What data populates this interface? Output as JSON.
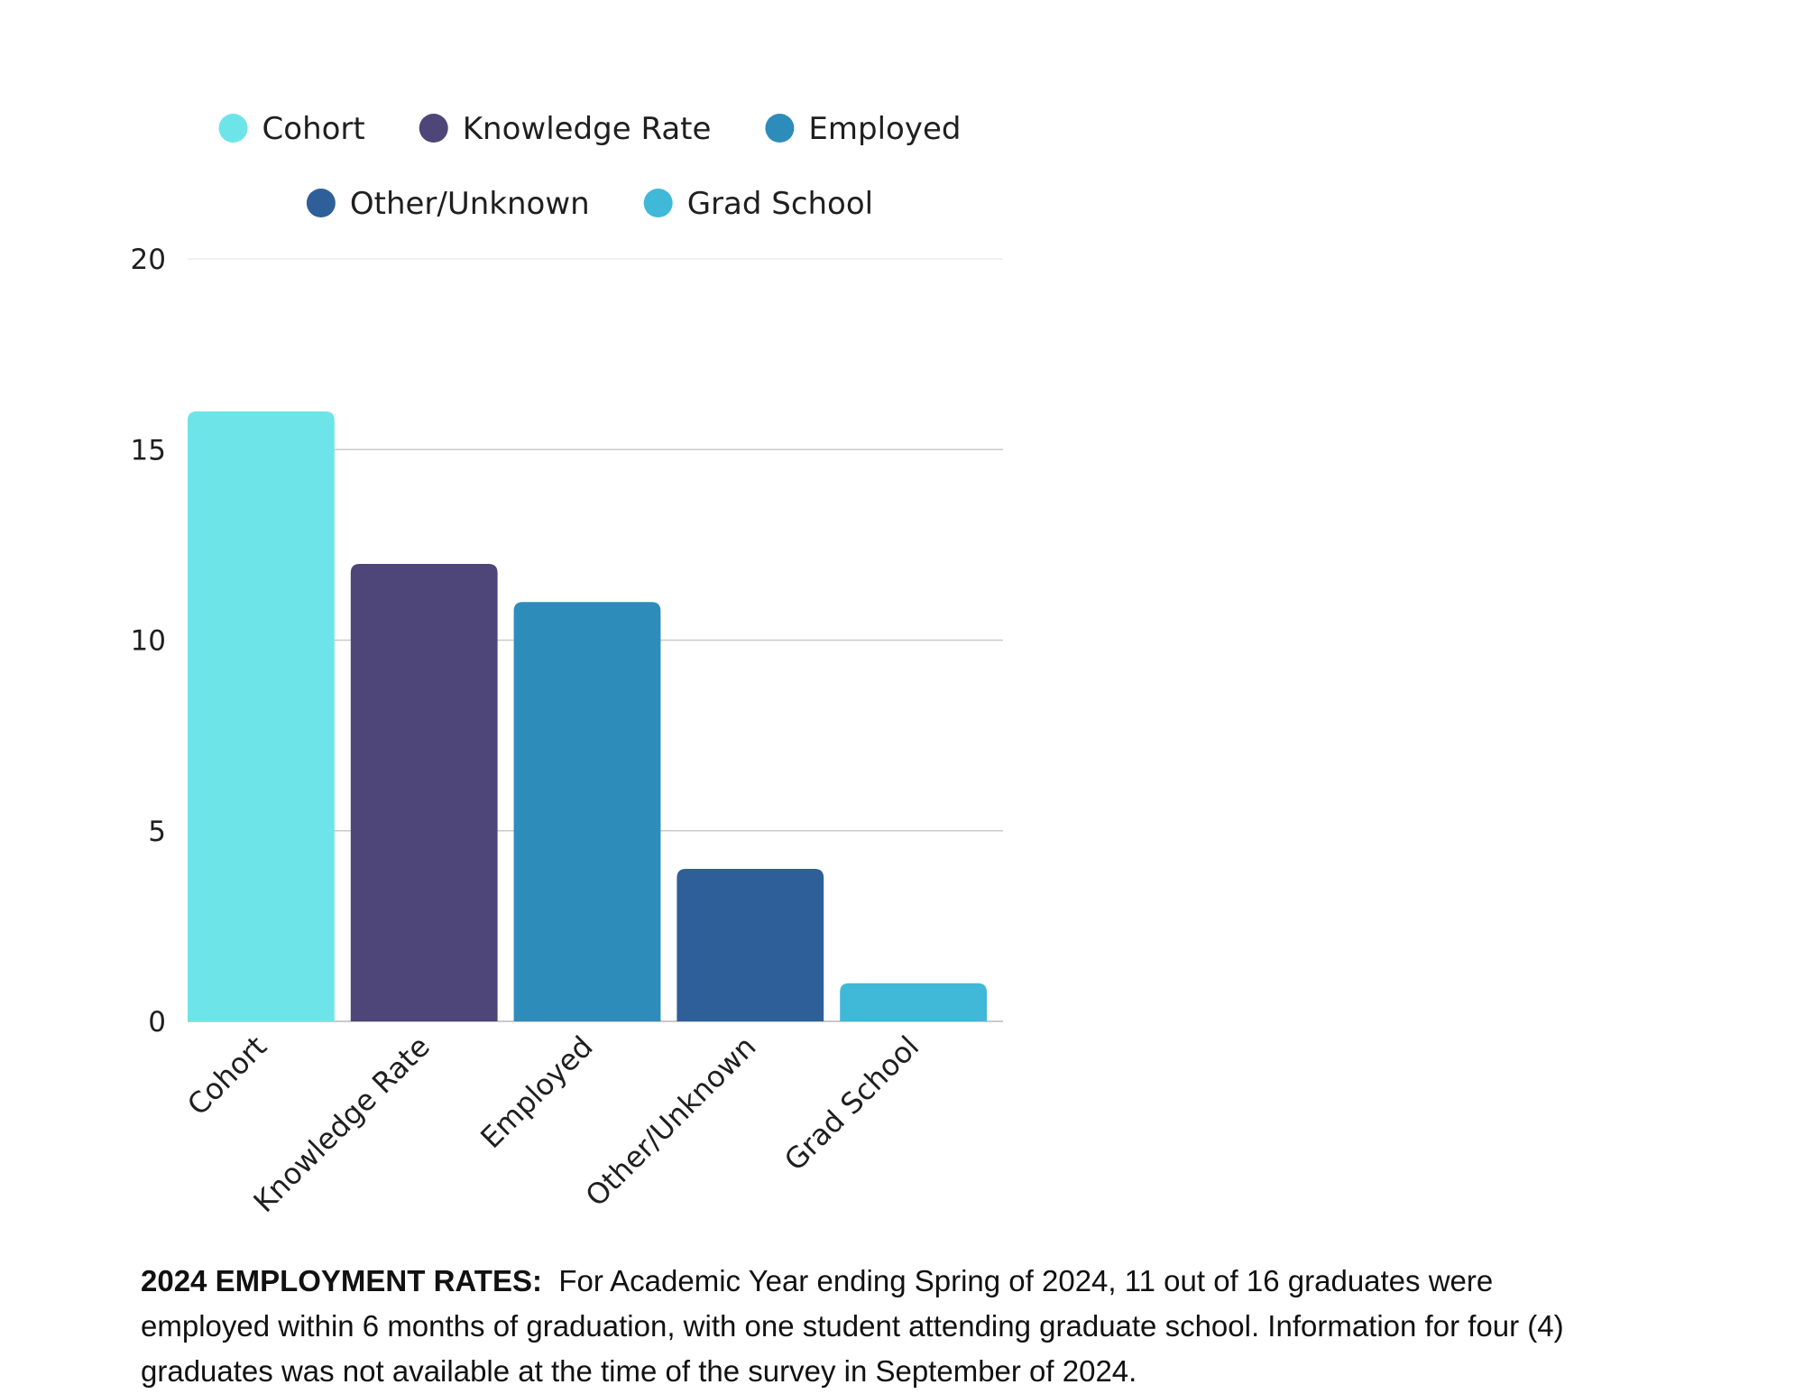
{
  "chart_data": {
    "type": "bar",
    "categories": [
      "Cohort",
      "Knowledge Rate",
      "Employed",
      "Other/Unknown",
      "Grad School"
    ],
    "values": [
      16,
      12,
      11,
      4,
      1
    ],
    "colors": [
      "#6de5e8",
      "#4e4578",
      "#2e8cba",
      "#2f5f98",
      "#40b8d8"
    ],
    "legend": [
      "Cohort",
      "Knowledge Rate",
      "Employed",
      "Other/Unknown",
      "Grad School"
    ],
    "legend_position": "top",
    "ylim": [
      0,
      20
    ],
    "yticks": [
      0,
      5,
      10,
      15,
      20
    ],
    "ytick_labels": [
      "0",
      "5",
      "10",
      "15",
      "20"
    ],
    "grid": true,
    "title": "",
    "xlabel": "",
    "ylabel": ""
  },
  "caption": {
    "bold_label": "2024 EMPLOYMENT RATES:",
    "text": "For Academic Year ending Spring of 2024, 11 out of 16 graduates were employed within 6 months of graduation, with one student attending graduate school.  Information for four (4) graduates was not available at the time of the survey in September of 2024."
  }
}
